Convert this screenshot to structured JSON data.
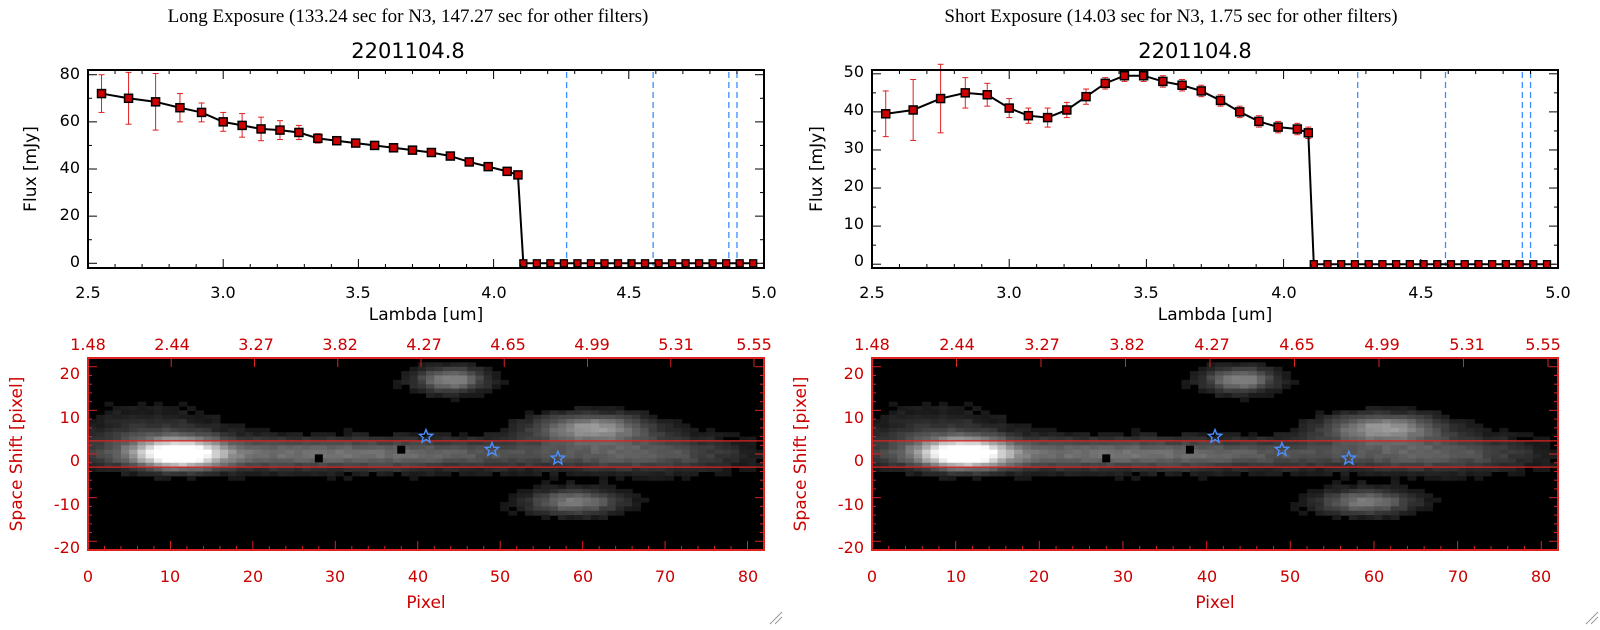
{
  "panels": [
    {
      "caption": "Long Exposure (133.24 sec for N3, 147.27 sec for other filters)",
      "spectrum": {
        "title": "2201104.8",
        "xlabel": "Lambda [um]",
        "ylabel": "Flux [mJy]",
        "xticks": [
          "2.5",
          "3.0",
          "3.5",
          "4.0",
          "4.5",
          "5.0"
        ],
        "yticks": [
          "0",
          "20",
          "40",
          "60",
          "80"
        ]
      },
      "image": {
        "xlabel": "Pixel",
        "ylabel": "Space Shift [pixel]",
        "xticks": [
          "0",
          "10",
          "20",
          "30",
          "40",
          "50",
          "60",
          "70",
          "80"
        ],
        "yticks": [
          "-20",
          "-10",
          "0",
          "10",
          "20"
        ],
        "top_ticks": [
          "1.48",
          "2.44",
          "3.27",
          "3.82",
          "4.27",
          "4.65",
          "4.99",
          "5.31",
          "5.55"
        ]
      }
    },
    {
      "caption": "Short Exposure (14.03 sec for N3, 1.75 sec for other filters)",
      "spectrum": {
        "title": "2201104.8",
        "xlabel": "Lambda [um]",
        "ylabel": "Flux [mJy]",
        "xticks": [
          "2.5",
          "3.0",
          "3.5",
          "4.0",
          "4.5",
          "5.0"
        ],
        "yticks": [
          "0",
          "10",
          "20",
          "30",
          "40",
          "50"
        ]
      },
      "image": {
        "xlabel": "Pixel",
        "ylabel": "Space Shift [pixel]",
        "xticks": [
          "0",
          "10",
          "20",
          "30",
          "40",
          "50",
          "60",
          "70",
          "80"
        ],
        "yticks": [
          "-20",
          "-10",
          "0",
          "10",
          "20"
        ],
        "top_ticks": [
          "1.48",
          "2.44",
          "3.27",
          "3.82",
          "4.27",
          "4.65",
          "4.99",
          "5.31",
          "5.55"
        ]
      }
    }
  ],
  "colors": {
    "line": "#000000",
    "marker": "#cc0000",
    "errorbar": "#e02020",
    "vline": "#3c8cff",
    "image_frame": "#dd2222",
    "star": "#4a90ff"
  },
  "chart_data": [
    {
      "type": "line",
      "title": "2201104.8",
      "xlabel": "Lambda [um]",
      "ylabel": "Flux [mJy]",
      "xlim": [
        2.5,
        5.0
      ],
      "ylim": [
        -2,
        82
      ],
      "x": [
        2.55,
        2.65,
        2.75,
        2.84,
        2.92,
        3.0,
        3.07,
        3.14,
        3.21,
        3.28,
        3.35,
        3.42,
        3.49,
        3.56,
        3.63,
        3.7,
        3.77,
        3.84,
        3.91,
        3.98,
        4.05,
        4.09
      ],
      "series": [
        {
          "values": [
            72,
            70,
            68.5,
            66,
            64,
            60,
            58.5,
            57,
            56.5,
            55.5,
            53,
            52,
            51,
            50,
            49,
            48,
            47,
            45.5,
            43,
            41,
            39,
            37.5
          ],
          "errors": [
            8,
            11,
            12,
            6,
            4,
            4,
            5,
            5,
            4,
            3,
            2,
            1.5,
            1.5,
            1.5,
            1.5,
            1.5,
            1.5,
            1.5,
            1.5,
            1.5,
            1.5,
            1.5
          ]
        }
      ],
      "drop_to_zero_at": 4.11,
      "zero_x": [
        4.11,
        4.16,
        4.21,
        4.26,
        4.31,
        4.36,
        4.41,
        4.46,
        4.51,
        4.56,
        4.61,
        4.66,
        4.71,
        4.76,
        4.81,
        4.86,
        4.91,
        4.96
      ],
      "vlines": [
        4.27,
        4.59,
        4.87,
        4.9
      ]
    },
    {
      "type": "line",
      "title": "2201104.8",
      "xlabel": "Lambda [um]",
      "ylabel": "Flux [mJy]",
      "xlim": [
        2.5,
        5.0
      ],
      "ylim": [
        -1,
        51
      ],
      "x": [
        2.55,
        2.65,
        2.75,
        2.84,
        2.92,
        3.0,
        3.07,
        3.14,
        3.21,
        3.28,
        3.35,
        3.42,
        3.49,
        3.56,
        3.63,
        3.7,
        3.77,
        3.84,
        3.91,
        3.98,
        4.05,
        4.09
      ],
      "series": [
        {
          "values": [
            39.5,
            40.5,
            43.5,
            45,
            44.5,
            41,
            39,
            38.5,
            40.5,
            44,
            47.5,
            49.5,
            49.5,
            48,
            47,
            45.5,
            43,
            40,
            37.5,
            36,
            35.5,
            34.5
          ],
          "errors": [
            6,
            8,
            9,
            4,
            3,
            2.5,
            2,
            2.5,
            2,
            2,
            1.5,
            1.5,
            1.5,
            1.5,
            1.5,
            1.5,
            1.5,
            1.5,
            1.5,
            1.5,
            1.5,
            1.5
          ]
        }
      ],
      "drop_to_zero_at": 4.11,
      "zero_x": [
        4.11,
        4.16,
        4.21,
        4.26,
        4.31,
        4.36,
        4.41,
        4.46,
        4.51,
        4.56,
        4.61,
        4.66,
        4.71,
        4.76,
        4.81,
        4.86,
        4.91,
        4.96
      ],
      "vlines": [
        4.27,
        4.59,
        4.87,
        4.9
      ]
    },
    {
      "type": "heatmap",
      "xlabel": "Pixel",
      "ylabel": "Space Shift [pixel]",
      "xlim": [
        0,
        82
      ],
      "ylim": [
        -22,
        22
      ],
      "top_axis_ticks": [
        "1.48",
        "2.44",
        "3.27",
        "3.82",
        "4.27",
        "4.65",
        "4.99",
        "5.31",
        "5.55"
      ],
      "aperture": [
        -3,
        3
      ],
      "source_peak": [
        11,
        0
      ],
      "stars": [
        [
          41,
          4
        ],
        [
          49,
          1
        ],
        [
          57,
          -1
        ]
      ],
      "black_squares": [
        [
          28,
          -1
        ],
        [
          38,
          1
        ]
      ],
      "blobs": [
        {
          "x": 11,
          "y": 0,
          "sx": 3.5,
          "sy": 2.2,
          "a": 1.0
        },
        {
          "x": 30,
          "y": 0,
          "sx": 22,
          "sy": 2.5,
          "a": 0.42
        },
        {
          "x": 61,
          "y": 6,
          "sx": 5,
          "sy": 2.2,
          "a": 0.55
        },
        {
          "x": 59,
          "y": -11,
          "sx": 4,
          "sy": 2,
          "a": 0.45
        },
        {
          "x": 44,
          "y": 17,
          "sx": 3,
          "sy": 2,
          "a": 0.5
        },
        {
          "x": 8,
          "y": 5,
          "sx": 6,
          "sy": 4,
          "a": 0.18
        },
        {
          "x": 68,
          "y": 0,
          "sx": 8,
          "sy": 3,
          "a": 0.25
        }
      ]
    },
    {
      "type": "heatmap",
      "xlabel": "Pixel",
      "ylabel": "Space Shift [pixel]",
      "xlim": [
        0,
        82
      ],
      "ylim": [
        -22,
        22
      ],
      "top_axis_ticks": [
        "1.48",
        "2.44",
        "3.27",
        "3.82",
        "4.27",
        "4.65",
        "4.99",
        "5.31",
        "5.55"
      ],
      "aperture": [
        -3,
        3
      ],
      "source_peak": [
        11,
        0
      ],
      "stars": [
        [
          41,
          4
        ],
        [
          49,
          1
        ],
        [
          57,
          -1
        ]
      ],
      "black_squares": [
        [
          28,
          -1
        ],
        [
          38,
          1
        ]
      ],
      "blobs": [
        {
          "x": 11,
          "y": 0,
          "sx": 3.5,
          "sy": 2.2,
          "a": 1.0
        },
        {
          "x": 30,
          "y": 0,
          "sx": 22,
          "sy": 2.5,
          "a": 0.42
        },
        {
          "x": 61,
          "y": 6,
          "sx": 5,
          "sy": 2.2,
          "a": 0.55
        },
        {
          "x": 59,
          "y": -11,
          "sx": 4,
          "sy": 2,
          "a": 0.45
        },
        {
          "x": 44,
          "y": 17,
          "sx": 3,
          "sy": 2,
          "a": 0.5
        },
        {
          "x": 8,
          "y": 5,
          "sx": 6,
          "sy": 4,
          "a": 0.18
        },
        {
          "x": 68,
          "y": 0,
          "sx": 8,
          "sy": 3,
          "a": 0.25
        }
      ]
    }
  ]
}
